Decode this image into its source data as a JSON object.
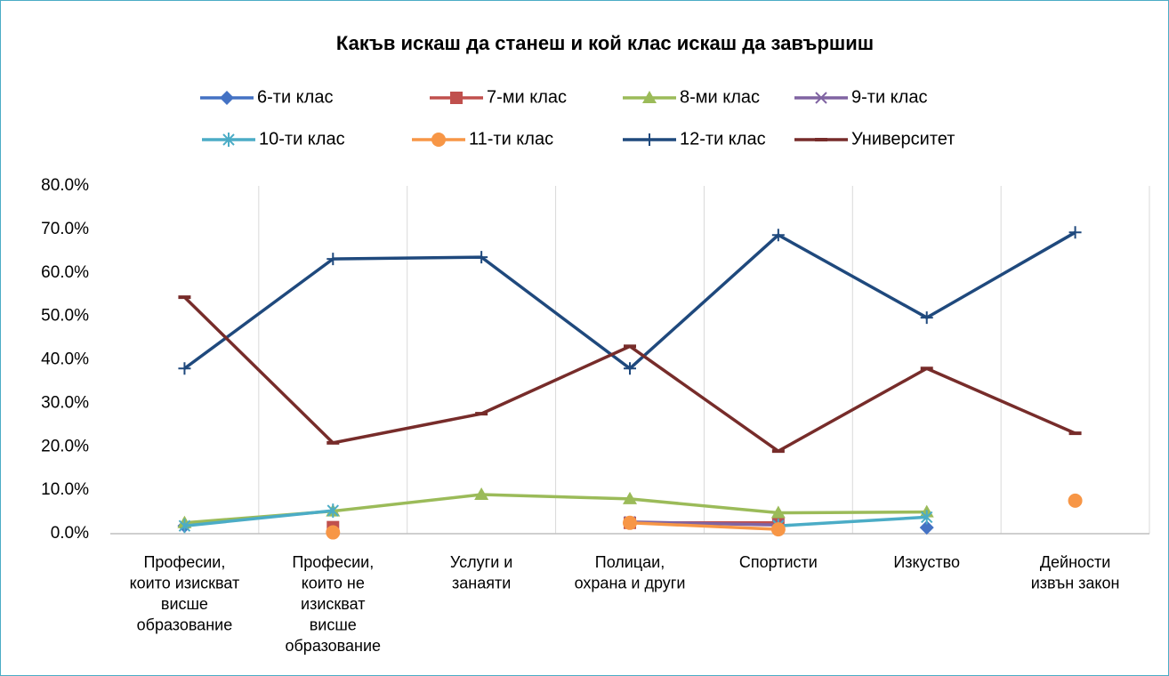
{
  "chart_data": {
    "type": "line",
    "title": "Какъв искаш да станеш и кой клас искаш да завършиш",
    "categories": [
      [
        "Професии,",
        "които изискват",
        "висше",
        "образование"
      ],
      [
        "Професии,",
        "които не",
        "изискват",
        "висше",
        "образование"
      ],
      [
        "Услуги и",
        "занаяти"
      ],
      [
        "Полицаи,",
        "охрана и други"
      ],
      [
        "Спортисти"
      ],
      [
        "Изкуство"
      ],
      [
        "Дейности",
        "извън закон"
      ]
    ],
    "series": [
      {
        "name": "6-ти клас",
        "color": "#4472c4",
        "marker": "diamond",
        "values": [
          1.8,
          null,
          null,
          null,
          null,
          1.4,
          null
        ]
      },
      {
        "name": "7-ми клас",
        "color": "#c0504d",
        "marker": "square",
        "values": [
          null,
          1.5,
          null,
          2.5,
          2.5,
          null,
          null
        ]
      },
      {
        "name": "8-ми клас",
        "color": "#9bbb59",
        "marker": "triangle",
        "values": [
          2.5,
          5.2,
          9.0,
          8.0,
          4.8,
          5.0,
          null
        ]
      },
      {
        "name": "9-ти клас",
        "color": "#8064a2",
        "marker": "x",
        "values": [
          null,
          null,
          null,
          2.7,
          2.0,
          null,
          null
        ]
      },
      {
        "name": "10-ти клас",
        "color": "#4bacc6",
        "marker": "star",
        "values": [
          1.8,
          5.3,
          null,
          null,
          1.8,
          3.8,
          null
        ]
      },
      {
        "name": "11-ти клас",
        "color": "#f79646",
        "marker": "circle",
        "values": [
          null,
          0.3,
          null,
          2.5,
          1.0,
          null,
          7.6
        ]
      },
      {
        "name": "12-ти клас",
        "color": "#1f497d",
        "marker": "plus",
        "values": [
          38.0,
          63.2,
          63.6,
          38.0,
          68.7,
          49.7,
          69.3
        ]
      },
      {
        "name": "Университет",
        "color": "#772c2a",
        "marker": "dash",
        "values": [
          54.4,
          20.9,
          27.6,
          43.1,
          19.0,
          38.0,
          23.1
        ]
      }
    ],
    "ylim": [
      0,
      80
    ],
    "yticks": [
      {
        "value": 0,
        "label": "0.0%"
      },
      {
        "value": 10,
        "label": "10.0%"
      },
      {
        "value": 20,
        "label": "20.0%"
      },
      {
        "value": 30,
        "label": "30.0%"
      },
      {
        "value": 40,
        "label": "40.0%"
      },
      {
        "value": 50,
        "label": "50.0%"
      },
      {
        "value": 60,
        "label": "60.0%"
      },
      {
        "value": 70,
        "label": "70.0%"
      },
      {
        "value": 80,
        "label": "80.0%"
      }
    ],
    "grid": "vertical"
  }
}
